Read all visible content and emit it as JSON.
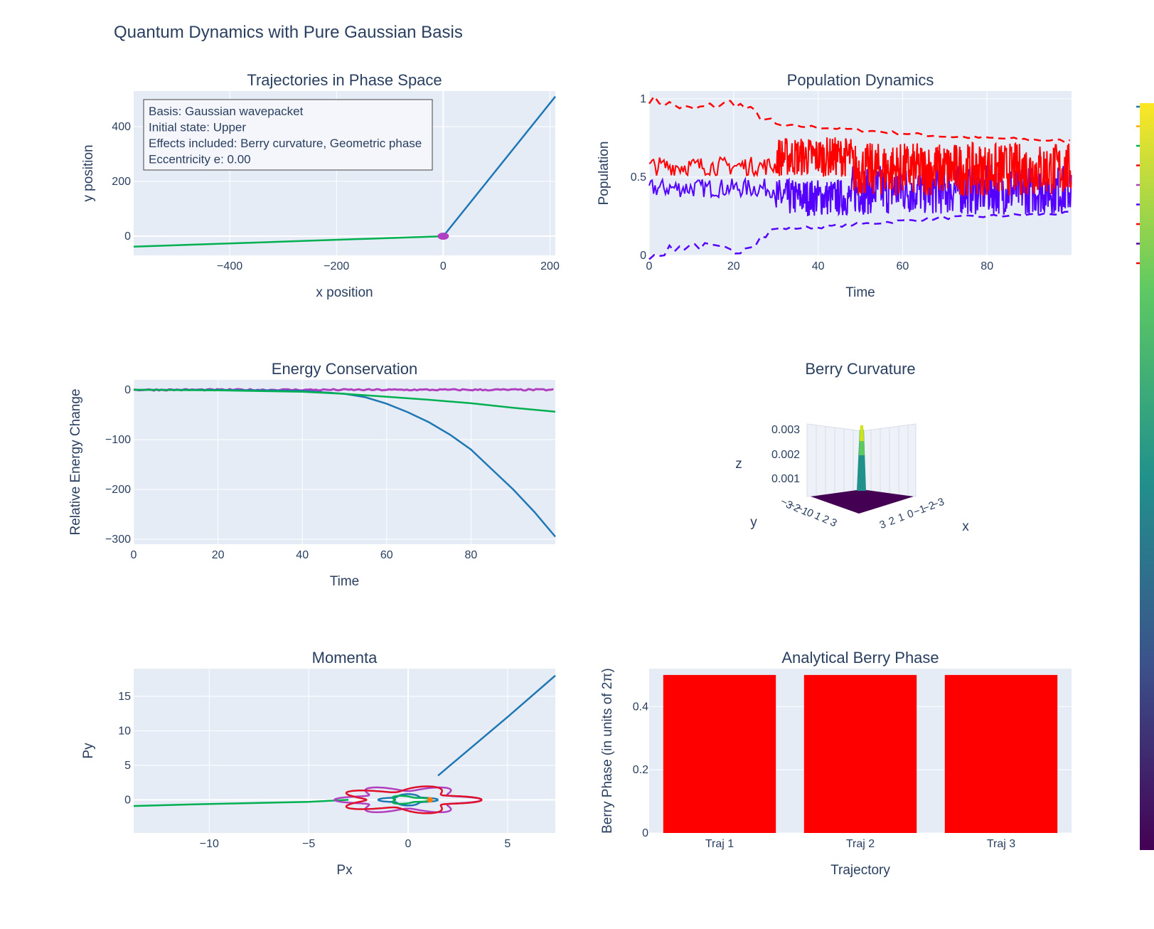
{
  "title": "Quantum Dynamics with Pure Gaussian Basis",
  "colors": {
    "traj1": "#1f77b4",
    "traj2": "#ff7f0e",
    "traj3": "#2ca02c",
    "green": "#00b050",
    "magenta": "#b040c0",
    "red": "#ff0000",
    "blue": "#5500ff",
    "plot_bg": "#e5ecf6",
    "grid": "#ffffff",
    "text": "#2a3f5f"
  },
  "chart_data": [
    {
      "id": "phase",
      "type": "line",
      "title": "Trajectories in Phase Space",
      "xlabel": "x position",
      "ylabel": "y position",
      "xlim": [
        -580,
        210
      ],
      "ylim": [
        -70,
        530
      ],
      "xticks": [
        -400,
        -200,
        0,
        200
      ],
      "xtick_labels": [
        "−400",
        "−200",
        "0",
        "200"
      ],
      "yticks": [
        0,
        200,
        400
      ],
      "ytick_labels": [
        "0",
        "200",
        "400"
      ],
      "annotation": [
        "Basis: Gaussian wavepacket",
        "Initial state: Upper",
        "Effects included: Berry curvature, Geometric phase",
        "Eccentricity e: 0.00"
      ],
      "series": [
        {
          "color": "#1f77b4",
          "x": [
            0,
            210
          ],
          "y": [
            0,
            510
          ]
        },
        {
          "color": "#00b050",
          "x": [
            -580,
            0
          ],
          "y": [
            -38,
            0
          ]
        }
      ]
    },
    {
      "id": "population",
      "type": "line",
      "title": "Population Dynamics",
      "xlabel": "Time",
      "ylabel": "Population",
      "xlim": [
        0,
        100
      ],
      "ylim": [
        0,
        1.05
      ],
      "xticks": [
        0,
        20,
        40,
        60,
        80
      ],
      "xtick_labels": [
        "0",
        "20",
        "40",
        "60",
        "80"
      ],
      "yticks": [
        0,
        0.5,
        1
      ],
      "ytick_labels": [
        "0",
        "0.5",
        "1"
      ],
      "series": [
        {
          "color": "#ff0000",
          "dash": true,
          "x": [
            0,
            10,
            20,
            25,
            30,
            40,
            50,
            60,
            70,
            80,
            90,
            100
          ],
          "y": [
            1.0,
            0.93,
            0.98,
            0.91,
            0.83,
            0.82,
            0.8,
            0.78,
            0.76,
            0.75,
            0.74,
            0.73
          ]
        },
        {
          "color": "#5500ff",
          "dash": true,
          "x": [
            0,
            10,
            20,
            25,
            30,
            40,
            50,
            60,
            70,
            80,
            90,
            100
          ],
          "y": [
            0.0,
            0.07,
            0.02,
            0.09,
            0.17,
            0.18,
            0.2,
            0.22,
            0.24,
            0.25,
            0.26,
            0.27
          ]
        },
        {
          "color": "#ff0000",
          "x": [
            0,
            5,
            10,
            15,
            20,
            25,
            30,
            40,
            50,
            60,
            70,
            80,
            90,
            100
          ],
          "y": [
            0.52,
            0.58,
            0.55,
            0.6,
            0.56,
            0.58,
            0.6,
            0.62,
            0.55,
            0.53,
            0.52,
            0.54,
            0.55,
            0.53
          ]
        },
        {
          "color": "#5500ff",
          "x": [
            0,
            5,
            10,
            15,
            20,
            25,
            30,
            40,
            50,
            60,
            70,
            80,
            90,
            100
          ],
          "y": [
            0.48,
            0.42,
            0.45,
            0.4,
            0.44,
            0.42,
            0.4,
            0.38,
            0.45,
            0.47,
            0.48,
            0.46,
            0.45,
            0.47
          ]
        }
      ]
    },
    {
      "id": "energy",
      "type": "line",
      "title": "Energy Conservation",
      "xlabel": "Time",
      "ylabel": "Relative Energy Change",
      "xlim": [
        0,
        100
      ],
      "ylim": [
        -310,
        20
      ],
      "xticks": [
        0,
        20,
        40,
        60,
        80
      ],
      "xtick_labels": [
        "0",
        "20",
        "40",
        "60",
        "80"
      ],
      "yticks": [
        0,
        -100,
        -200,
        -300
      ],
      "ytick_labels": [
        "0",
        "−100",
        "−200",
        "−300"
      ],
      "series": [
        {
          "color": "#1f77b4",
          "x": [
            0,
            20,
            40,
            50,
            55,
            60,
            65,
            70,
            75,
            80,
            85,
            90,
            95,
            100
          ],
          "y": [
            0,
            0,
            -2,
            -8,
            -15,
            -28,
            -45,
            -65,
            -90,
            -120,
            -160,
            -200,
            -245,
            -295
          ]
        },
        {
          "color": "#00b050",
          "x": [
            0,
            20,
            40,
            50,
            60,
            70,
            80,
            90,
            100
          ],
          "y": [
            0,
            -1,
            -4,
            -8,
            -14,
            -20,
            -27,
            -36,
            -44
          ]
        },
        {
          "color": "#b040c0",
          "x": [
            0,
            100
          ],
          "y": [
            0,
            0
          ]
        }
      ]
    },
    {
      "id": "berry",
      "type": "surface",
      "title": "Berry Curvature",
      "zlabel": "z",
      "xlabel": "x",
      "ylabel": "y",
      "zticks": [
        "0.001",
        "0.002",
        "0.003"
      ],
      "xticks": [
        "3",
        "2",
        "1",
        "0",
        "−1",
        "−2",
        "−3"
      ],
      "yticks": [
        "−3",
        "−2",
        "−1",
        "0",
        "1",
        "2",
        "3"
      ],
      "zlim": [
        0,
        0.003
      ]
    },
    {
      "id": "momenta",
      "type": "line",
      "title": "Momenta",
      "xlabel": "Px",
      "ylabel": "Py",
      "xlim": [
        -13.8,
        7.4
      ],
      "ylim": [
        -4.8,
        19
      ],
      "xticks": [
        -10,
        -5,
        0,
        5
      ],
      "xtick_labels": [
        "−10",
        "−5",
        "0",
        "5"
      ],
      "yticks": [
        0,
        5,
        10,
        15
      ],
      "ytick_labels": [
        "0",
        "5",
        "10",
        "15"
      ],
      "series": [
        {
          "color": "#1f77b4",
          "x": [
            1.5,
            5,
            7.4
          ],
          "y": [
            3.5,
            12,
            18
          ]
        },
        {
          "color": "#00b050",
          "x": [
            -13.8,
            -10,
            -5,
            -3
          ],
          "y": [
            -0.9,
            -0.6,
            -0.3,
            0
          ]
        }
      ]
    },
    {
      "id": "bars",
      "type": "bar",
      "title": "Analytical Berry Phase",
      "xlabel": "Trajectory",
      "ylabel": "Berry Phase (in units of 2π)",
      "categories": [
        "Traj 1",
        "Traj 2",
        "Traj 3"
      ],
      "values": [
        0.5,
        0.5,
        0.5
      ],
      "ylim": [
        0,
        0.52
      ],
      "yticks": [
        0,
        0.2,
        0.4
      ],
      "ytick_labels": [
        "0",
        "0.2",
        "0.4"
      ],
      "color": "#ff0000"
    }
  ]
}
